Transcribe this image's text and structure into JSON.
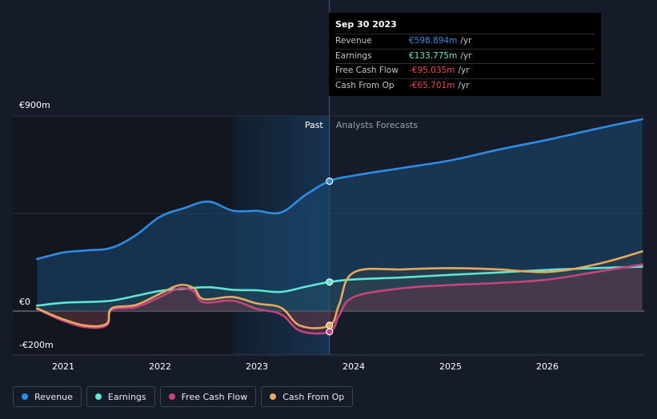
{
  "chart_data": {
    "type": "line",
    "y_labels": [
      {
        "label": "€900m",
        "value": 900
      },
      {
        "label": "€0",
        "value": 0
      },
      {
        "label": "-€200m",
        "value": -200
      }
    ],
    "ylim": [
      -200,
      900
    ],
    "xlim": [
      2020.7,
      2027.0
    ],
    "x_ticks": [
      {
        "label": "2021",
        "value": 2021
      },
      {
        "label": "2022",
        "value": 2022
      },
      {
        "label": "2023",
        "value": 2023
      },
      {
        "label": "2024",
        "value": 2024
      },
      {
        "label": "2025",
        "value": 2025
      },
      {
        "label": "2026",
        "value": 2026
      }
    ],
    "divider_x": 2023.75,
    "shade_start_x": 2022.75,
    "past_label": "Past",
    "forecast_label": "Analysts Forecasts",
    "series": [
      {
        "name": "Revenue",
        "color": "#2d8de4",
        "points": [
          [
            2020.73,
            240
          ],
          [
            2021.0,
            270
          ],
          [
            2021.25,
            280
          ],
          [
            2021.5,
            292
          ],
          [
            2021.75,
            350
          ],
          [
            2022.0,
            435
          ],
          [
            2022.25,
            475
          ],
          [
            2022.5,
            505
          ],
          [
            2022.75,
            463
          ],
          [
            2023.0,
            462
          ],
          [
            2023.25,
            455
          ],
          [
            2023.5,
            535
          ],
          [
            2023.75,
            599
          ],
          [
            2024.0,
            625
          ],
          [
            2024.5,
            660
          ],
          [
            2025.0,
            695
          ],
          [
            2025.5,
            745
          ],
          [
            2026.0,
            790
          ],
          [
            2026.5,
            840
          ],
          [
            2026.98,
            885
          ]
        ],
        "marker": [
          2023.75,
          599
        ]
      },
      {
        "name": "Earnings",
        "color": "#5ee6d2",
        "points": [
          [
            2020.73,
            25
          ],
          [
            2021.0,
            38
          ],
          [
            2021.25,
            42
          ],
          [
            2021.5,
            48
          ],
          [
            2021.75,
            70
          ],
          [
            2022.0,
            93
          ],
          [
            2022.25,
            103
          ],
          [
            2022.5,
            110
          ],
          [
            2022.75,
            98
          ],
          [
            2023.0,
            96
          ],
          [
            2023.25,
            88
          ],
          [
            2023.5,
            112
          ],
          [
            2023.75,
            134
          ],
          [
            2024.0,
            146
          ],
          [
            2024.5,
            155
          ],
          [
            2025.0,
            167
          ],
          [
            2025.5,
            178
          ],
          [
            2026.0,
            190
          ],
          [
            2026.5,
            198
          ],
          [
            2026.98,
            205
          ]
        ],
        "marker": [
          2023.75,
          134
        ]
      },
      {
        "name": "Free Cash Flow",
        "color": "#c7437d",
        "points": [
          [
            2020.73,
            10
          ],
          [
            2021.0,
            -45
          ],
          [
            2021.25,
            -75
          ],
          [
            2021.45,
            -65
          ],
          [
            2021.5,
            5
          ],
          [
            2021.75,
            18
          ],
          [
            2022.0,
            65
          ],
          [
            2022.2,
            105
          ],
          [
            2022.35,
            90
          ],
          [
            2022.45,
            40
          ],
          [
            2022.75,
            48
          ],
          [
            2023.0,
            10
          ],
          [
            2023.25,
            -15
          ],
          [
            2023.45,
            -92
          ],
          [
            2023.75,
            -95
          ],
          [
            2023.85,
            -20
          ],
          [
            2024.0,
            65
          ],
          [
            2024.5,
            105
          ],
          [
            2025.0,
            120
          ],
          [
            2025.5,
            130
          ],
          [
            2026.0,
            145
          ],
          [
            2026.5,
            180
          ],
          [
            2026.98,
            215
          ]
        ],
        "marker": [
          2023.75,
          -95
        ]
      },
      {
        "name": "Cash From Op",
        "color": "#e8a95c",
        "points": [
          [
            2020.73,
            12
          ],
          [
            2021.0,
            -38
          ],
          [
            2021.25,
            -68
          ],
          [
            2021.45,
            -58
          ],
          [
            2021.5,
            12
          ],
          [
            2021.75,
            28
          ],
          [
            2022.0,
            80
          ],
          [
            2022.2,
            120
          ],
          [
            2022.35,
            105
          ],
          [
            2022.45,
            55
          ],
          [
            2022.75,
            65
          ],
          [
            2023.0,
            35
          ],
          [
            2023.25,
            15
          ],
          [
            2023.45,
            -68
          ],
          [
            2023.75,
            -66
          ],
          [
            2023.85,
            30
          ],
          [
            2024.0,
            178
          ],
          [
            2024.5,
            192
          ],
          [
            2025.0,
            198
          ],
          [
            2025.5,
            192
          ],
          [
            2026.0,
            180
          ],
          [
            2026.5,
            215
          ],
          [
            2026.98,
            275
          ]
        ],
        "marker": [
          2023.75,
          -66
        ]
      }
    ],
    "tooltip": {
      "date": "Sep 30 2023",
      "rows": [
        {
          "label": "Revenue",
          "value": "€598.894m",
          "unit": "/yr",
          "color": "#2d8de4"
        },
        {
          "label": "Earnings",
          "value": "€133.775m",
          "unit": "/yr",
          "color": "#5ee6d2"
        },
        {
          "label": "Free Cash Flow",
          "value": "-€95.035m",
          "unit": "/yr",
          "color": "#f04848"
        },
        {
          "label": "Cash From Op",
          "value": "-€65.701m",
          "unit": "/yr",
          "color": "#f04848"
        }
      ]
    }
  },
  "legend": [
    {
      "label": "Revenue",
      "color": "#2d8de4"
    },
    {
      "label": "Earnings",
      "color": "#5ee6d2"
    },
    {
      "label": "Free Cash Flow",
      "color": "#c7437d"
    },
    {
      "label": "Cash From Op",
      "color": "#e8a95c"
    }
  ]
}
